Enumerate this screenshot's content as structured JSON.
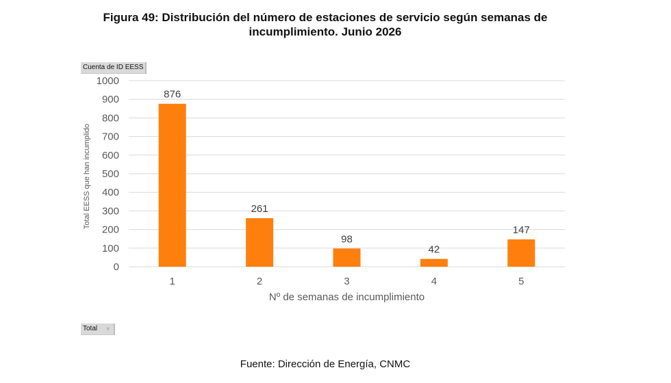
{
  "title": "Figura 49: Distribución del número de estaciones de servicio según semanas de incumplimiento. Junio 2026",
  "pivot_buttons": {
    "value_field": "Cuenta de ID EESS",
    "filter_field": "Total"
  },
  "source": "Fuente: Dirección de Energía, CNMC",
  "colors": {
    "bar": "#ff7f0e",
    "grid": "#d9d9d9",
    "axis_text": "#595959"
  },
  "chart_data": {
    "type": "bar",
    "categories": [
      "1",
      "2",
      "3",
      "4",
      "5"
    ],
    "values": [
      876,
      261,
      98,
      42,
      147
    ],
    "data_labels": [
      "876",
      "261",
      "98",
      "42",
      "147"
    ],
    "xlabel": "Nº de semanas de incumplimiento",
    "ylabel": "Total EESS que han incumplido",
    "ylim": [
      0,
      1000
    ],
    "yticks": [
      0,
      100,
      200,
      300,
      400,
      500,
      600,
      700,
      800,
      900,
      1000
    ],
    "grid": true,
    "legend": false
  }
}
